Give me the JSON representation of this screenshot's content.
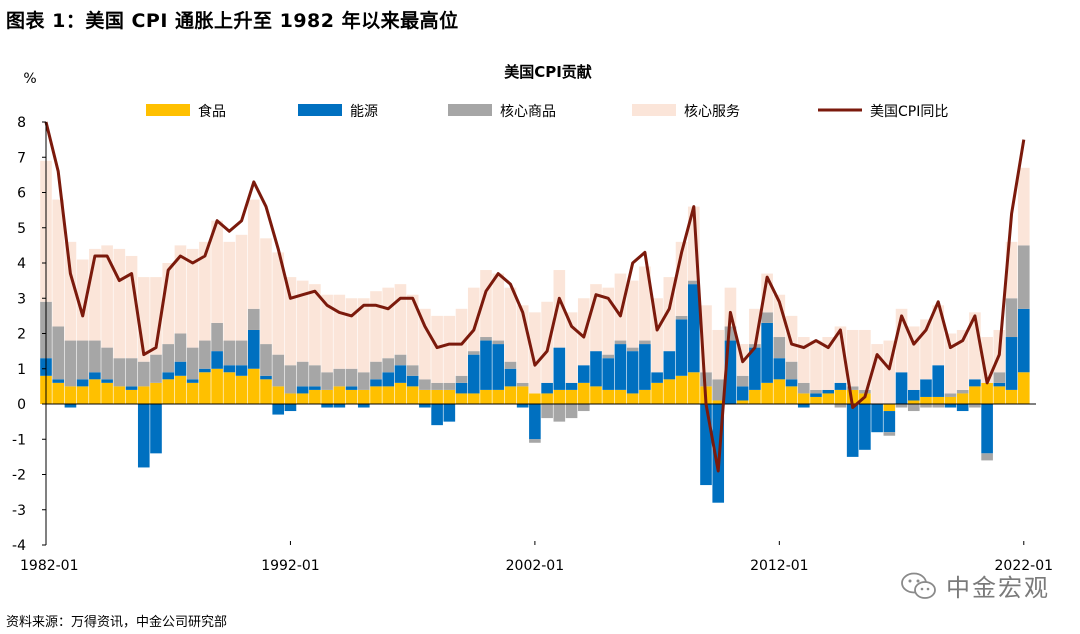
{
  "figure_title": "图表 1：美国 CPI 通胀上升至 1982 年以来最高位",
  "source": "资料来源：万得资讯，中金公司研究部",
  "watermark": {
    "text": "中金宏观",
    "icon": "wechat-logo-icon"
  },
  "colors": {
    "food": "#FFC000",
    "energy": "#0070C0",
    "core_goods": "#A6A6A6",
    "core_services": "#FBE5D9",
    "cpi": "#7B1A0C"
  },
  "chart_data": {
    "type": "area",
    "title": "美国CPI贡献",
    "ylabel": "%",
    "ylim": [
      -4,
      8
    ],
    "yticks": [
      -4,
      -3,
      -2,
      -1,
      0,
      1,
      2,
      3,
      4,
      5,
      6,
      7,
      8
    ],
    "xlim": [
      1982.0,
      2022.5
    ],
    "xticks": [
      {
        "label": "1982-01",
        "x": 1982.0
      },
      {
        "label": "1992-01",
        "x": 1992.0
      },
      {
        "label": "2002-01",
        "x": 2002.0
      },
      {
        "label": "2012-01",
        "x": 2012.0
      },
      {
        "label": "2022-01",
        "x": 2022.0
      }
    ],
    "legend": [
      "食品",
      "能源",
      "核心商品",
      "核心服务",
      "美国CPI同比"
    ],
    "x": [
      1982.0,
      1982.5,
      1983.0,
      1983.5,
      1984.0,
      1984.5,
      1985.0,
      1985.5,
      1986.0,
      1986.5,
      1987.0,
      1987.5,
      1988.0,
      1988.5,
      1989.0,
      1989.5,
      1990.0,
      1990.5,
      1991.0,
      1991.5,
      1992.0,
      1992.5,
      1993.0,
      1993.5,
      1994.0,
      1994.5,
      1995.0,
      1995.5,
      1996.0,
      1996.5,
      1997.0,
      1997.5,
      1998.0,
      1998.5,
      1999.0,
      1999.5,
      2000.0,
      2000.5,
      2001.0,
      2001.5,
      2002.0,
      2002.5,
      2003.0,
      2003.5,
      2004.0,
      2004.5,
      2005.0,
      2005.5,
      2006.0,
      2006.5,
      2007.0,
      2007.5,
      2008.0,
      2008.5,
      2009.0,
      2009.5,
      2010.0,
      2010.5,
      2011.0,
      2011.5,
      2012.0,
      2012.5,
      2013.0,
      2013.5,
      2014.0,
      2014.5,
      2015.0,
      2015.5,
      2016.0,
      2016.5,
      2017.0,
      2017.5,
      2018.0,
      2018.5,
      2019.0,
      2019.5,
      2020.0,
      2020.5,
      2021.0,
      2021.5,
      2022.0
    ],
    "series": [
      {
        "name": "食品",
        "values": [
          0.8,
          0.6,
          0.5,
          0.5,
          0.7,
          0.6,
          0.5,
          0.4,
          0.5,
          0.6,
          0.7,
          0.8,
          0.6,
          0.9,
          1.0,
          0.9,
          0.8,
          1.0,
          0.7,
          0.5,
          0.3,
          0.3,
          0.4,
          0.4,
          0.5,
          0.4,
          0.4,
          0.5,
          0.5,
          0.6,
          0.5,
          0.4,
          0.4,
          0.4,
          0.3,
          0.3,
          0.4,
          0.4,
          0.5,
          0.5,
          0.3,
          0.3,
          0.4,
          0.4,
          0.6,
          0.5,
          0.4,
          0.4,
          0.3,
          0.4,
          0.6,
          0.7,
          0.8,
          0.9,
          0.5,
          0.1,
          0.0,
          0.1,
          0.4,
          0.6,
          0.7,
          0.5,
          0.3,
          0.2,
          0.3,
          0.4,
          0.4,
          0.3,
          0.0,
          -0.2,
          0.0,
          0.1,
          0.2,
          0.2,
          0.2,
          0.3,
          0.5,
          0.6,
          0.5,
          0.4,
          0.9
        ]
      },
      {
        "name": "能源",
        "values": [
          0.5,
          0.1,
          -0.1,
          0.2,
          0.2,
          0.1,
          0.0,
          0.1,
          -1.8,
          -1.4,
          0.2,
          0.4,
          0.1,
          0.1,
          0.5,
          0.2,
          0.3,
          1.1,
          0.1,
          -0.3,
          -0.2,
          0.2,
          0.1,
          -0.1,
          -0.1,
          0.1,
          -0.1,
          0.2,
          0.4,
          0.5,
          0.3,
          -0.1,
          -0.6,
          -0.5,
          0.3,
          1.1,
          1.4,
          1.3,
          0.5,
          -0.1,
          -1.0,
          0.3,
          1.2,
          0.2,
          0.5,
          1.0,
          0.9,
          1.3,
          1.2,
          1.3,
          0.3,
          0.8,
          1.6,
          2.5,
          -2.3,
          -2.8,
          1.8,
          0.4,
          1.2,
          1.7,
          0.6,
          0.2,
          -0.1,
          0.1,
          0.1,
          0.2,
          -1.5,
          -1.3,
          -0.8,
          -0.6,
          0.9,
          0.3,
          0.5,
          0.9,
          -0.1,
          -0.2,
          0.2,
          -1.4,
          0.1,
          1.5,
          1.8
        ]
      },
      {
        "name": "核心商品",
        "values": [
          1.6,
          1.5,
          1.3,
          1.1,
          0.9,
          0.9,
          0.8,
          0.8,
          0.7,
          0.8,
          0.8,
          0.8,
          0.9,
          0.8,
          0.8,
          0.7,
          0.7,
          0.6,
          0.9,
          0.9,
          0.8,
          0.7,
          0.6,
          0.5,
          0.5,
          0.5,
          0.5,
          0.5,
          0.4,
          0.3,
          0.3,
          0.3,
          0.2,
          0.2,
          0.2,
          0.1,
          0.1,
          0.1,
          0.2,
          0.1,
          -0.1,
          -0.4,
          -0.5,
          -0.4,
          -0.2,
          0.0,
          0.1,
          0.1,
          0.1,
          0.1,
          0.0,
          0.0,
          0.1,
          0.1,
          0.4,
          0.6,
          0.4,
          0.3,
          0.1,
          0.3,
          0.6,
          0.5,
          0.3,
          0.1,
          0.0,
          -0.1,
          0.1,
          0.1,
          0.0,
          -0.1,
          -0.1,
          -0.2,
          -0.1,
          -0.1,
          0.1,
          0.1,
          -0.1,
          -0.2,
          0.3,
          1.1,
          1.8
        ]
      },
      {
        "name": "核心服务",
        "values": [
          4.0,
          3.6,
          2.8,
          2.3,
          2.6,
          2.9,
          3.1,
          2.9,
          2.4,
          2.2,
          2.3,
          2.5,
          2.8,
          2.8,
          2.9,
          2.8,
          3.0,
          3.1,
          3.0,
          2.9,
          2.5,
          2.3,
          2.3,
          2.2,
          2.1,
          2.0,
          2.1,
          2.0,
          2.0,
          2.0,
          2.0,
          2.0,
          1.9,
          1.9,
          1.9,
          1.8,
          1.9,
          1.9,
          2.1,
          2.2,
          2.3,
          2.3,
          2.2,
          2.0,
          1.9,
          1.9,
          1.9,
          1.9,
          1.9,
          2.1,
          2.1,
          2.1,
          2.1,
          2.1,
          1.9,
          1.4,
          1.1,
          0.9,
          1.0,
          1.1,
          1.2,
          1.3,
          1.3,
          1.4,
          1.5,
          1.6,
          1.6,
          1.7,
          1.7,
          1.8,
          1.8,
          1.8,
          1.7,
          1.7,
          1.7,
          1.7,
          1.9,
          1.3,
          1.2,
          1.6,
          2.2
        ]
      },
      {
        "name": "美国CPI同比",
        "values": [
          8.0,
          6.6,
          3.7,
          2.5,
          4.2,
          4.2,
          3.5,
          3.7,
          1.4,
          1.6,
          3.8,
          4.2,
          4.0,
          4.2,
          5.2,
          4.9,
          5.2,
          6.3,
          5.6,
          4.4,
          3.0,
          3.1,
          3.2,
          2.8,
          2.6,
          2.5,
          2.8,
          2.8,
          2.7,
          3.0,
          3.0,
          2.2,
          1.6,
          1.7,
          1.7,
          2.1,
          3.2,
          3.7,
          3.4,
          2.6,
          1.1,
          1.5,
          3.0,
          2.2,
          1.9,
          3.1,
          3.0,
          2.5,
          4.0,
          4.3,
          2.1,
          2.7,
          4.3,
          5.6,
          0.0,
          -1.9,
          2.6,
          1.2,
          1.6,
          3.6,
          2.9,
          1.7,
          1.6,
          1.8,
          1.6,
          2.1,
          -0.1,
          0.2,
          1.4,
          1.0,
          2.5,
          1.7,
          2.1,
          2.9,
          1.6,
          1.8,
          2.5,
          0.6,
          1.4,
          5.4,
          7.5
        ]
      }
    ]
  }
}
